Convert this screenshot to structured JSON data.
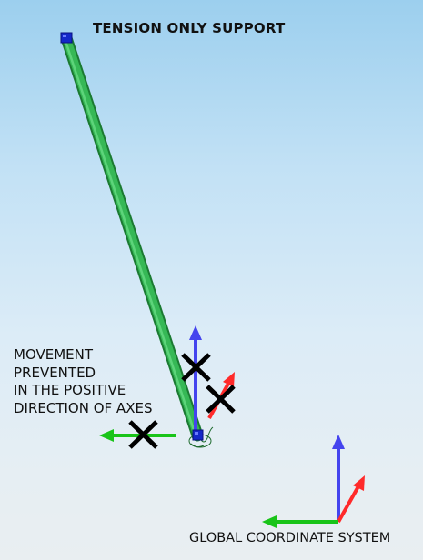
{
  "title": "TENSION ONLY SUPPORT",
  "note_lines": [
    "MOVEMENT",
    "PREVENTED",
    "IN THE POSITIVE",
    "DIRECTION OF AXES"
  ],
  "gcs_label": "GLOBAL COORDINATE SYSTEM",
  "colors": {
    "member": "#2fae4a",
    "node": "#1020c0",
    "axis_x": "#ff2a2a",
    "axis_y": "#19c419",
    "axis_z": "#4444ee",
    "cross": "#000000"
  },
  "icons": [
    "cross-mark-icon",
    "arrow-icon",
    "support-node-icon",
    "spring-icon"
  ]
}
